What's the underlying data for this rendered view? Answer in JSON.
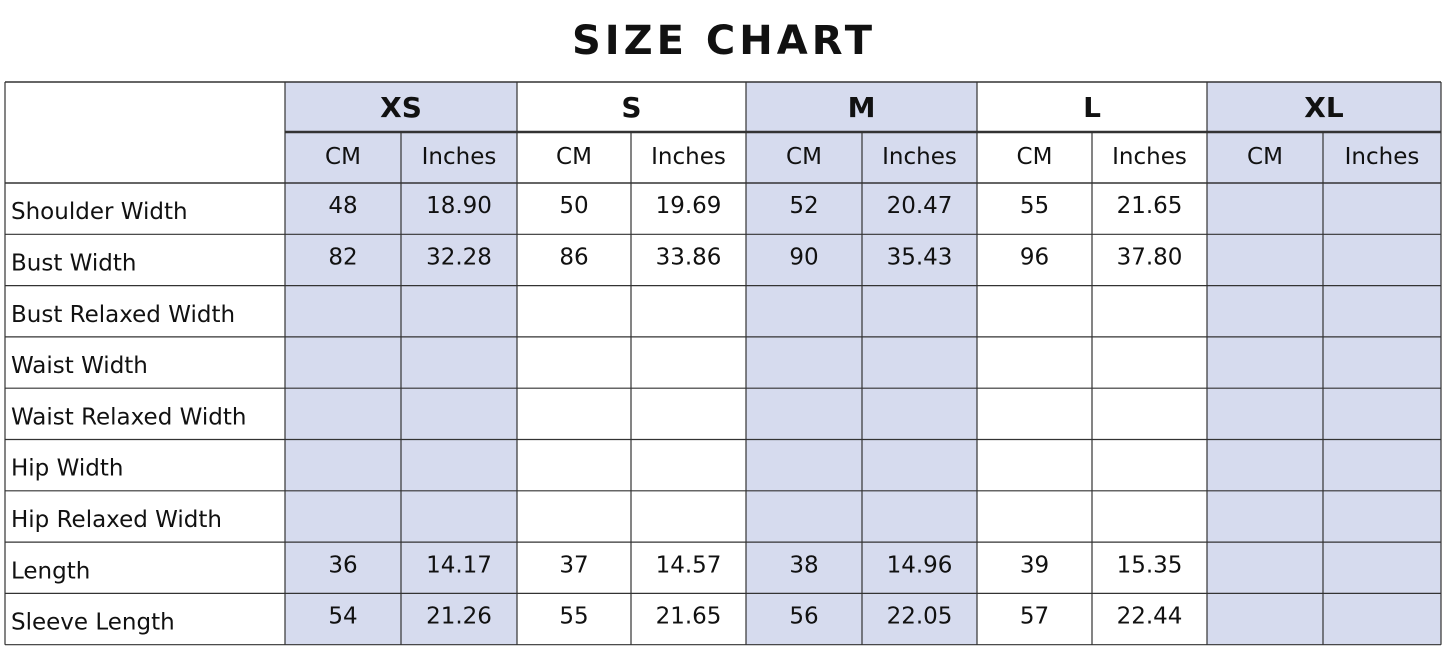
{
  "title": "SIZE CHART",
  "sizes": [
    "XS",
    "S",
    "M",
    "L",
    "XL"
  ],
  "units": [
    "CM",
    "Inches"
  ],
  "rows": [
    {
      "label": "Shoulder Width",
      "values": [
        "48",
        "18.90",
        "50",
        "19.69",
        "52",
        "20.47",
        "55",
        "21.65",
        null,
        null
      ]
    },
    {
      "label": "Bust Width",
      "values": [
        "82",
        "32.28",
        "86",
        "33.86",
        "90",
        "35.43",
        "96",
        "37.80",
        null,
        null
      ]
    },
    {
      "label": "Bust Relaxed Width",
      "values": [
        null,
        null,
        null,
        null,
        null,
        null,
        null,
        null,
        null,
        null
      ]
    },
    {
      "label": "Waist Width",
      "values": [
        null,
        null,
        null,
        null,
        null,
        null,
        null,
        null,
        null,
        null
      ]
    },
    {
      "label": "Waist Relaxed Width",
      "values": [
        null,
        null,
        null,
        null,
        null,
        null,
        null,
        null,
        null,
        null
      ]
    },
    {
      "label": "Hip Width",
      "values": [
        null,
        null,
        null,
        null,
        null,
        null,
        null,
        null,
        null,
        null
      ]
    },
    {
      "label": "Hip Relaxed Width",
      "values": [
        null,
        null,
        null,
        null,
        null,
        null,
        null,
        null,
        null,
        null
      ]
    },
    {
      "label": "Length",
      "values": [
        "36",
        "14.17",
        "37",
        "14.57",
        "38",
        "14.96",
        "39",
        "15.35",
        null,
        null
      ]
    },
    {
      "label": "Sleeve Length",
      "values": [
        "54",
        "21.26",
        "55",
        "21.65",
        "56",
        "22.05",
        "57",
        "22.44",
        null,
        null
      ]
    }
  ]
}
